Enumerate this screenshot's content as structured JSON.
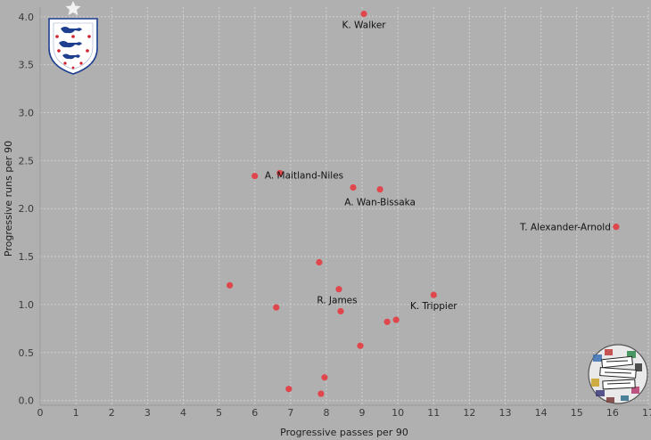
{
  "chart_data": {
    "type": "scatter",
    "title": "",
    "xlabel": "Progressive passes per 90",
    "ylabel": "Progressive runs per 90",
    "xlim": [
      0,
      17
    ],
    "ylim": [
      -0.05,
      4.1
    ],
    "xticks": [
      0,
      1,
      2,
      3,
      4,
      5,
      6,
      7,
      8,
      9,
      10,
      11,
      12,
      13,
      14,
      15,
      16,
      17
    ],
    "yticks": [
      0.0,
      0.5,
      1.0,
      1.5,
      2.0,
      2.5,
      3.0,
      3.5,
      4.0
    ],
    "ytick_labels": [
      "0.0",
      "0.5",
      "1.0",
      "1.5",
      "2.0",
      "2.5",
      "3.0",
      "3.5",
      "4.0"
    ],
    "grid": true,
    "point_color": "#e0474c",
    "points": [
      {
        "x": 9.05,
        "y": 4.03,
        "label": "K. Walker"
      },
      {
        "x": 6.0,
        "y": 2.34,
        "label": ""
      },
      {
        "x": 6.7,
        "y": 2.37,
        "label": ""
      },
      {
        "x": 8.75,
        "y": 2.22,
        "label": "A. Maitland-Niles"
      },
      {
        "x": 9.5,
        "y": 2.2,
        "label": "A. Wan-Bissaka"
      },
      {
        "x": 16.1,
        "y": 1.81,
        "label": "T. Alexander-Arnold"
      },
      {
        "x": 7.8,
        "y": 1.44,
        "label": ""
      },
      {
        "x": 5.3,
        "y": 1.2,
        "label": ""
      },
      {
        "x": 8.35,
        "y": 1.16,
        "label": ""
      },
      {
        "x": 11.0,
        "y": 1.1,
        "label": "K. Trippier"
      },
      {
        "x": 6.6,
        "y": 0.97,
        "label": ""
      },
      {
        "x": 8.4,
        "y": 0.93,
        "label": "R. James"
      },
      {
        "x": 9.7,
        "y": 0.82,
        "label": ""
      },
      {
        "x": 9.95,
        "y": 0.84,
        "label": ""
      },
      {
        "x": 8.95,
        "y": 0.57,
        "label": ""
      },
      {
        "x": 7.95,
        "y": 0.24,
        "label": ""
      },
      {
        "x": 6.95,
        "y": 0.12,
        "label": ""
      },
      {
        "x": 7.85,
        "y": 0.07,
        "label": ""
      }
    ]
  },
  "logos": {
    "england_crest_icon": "england-crest-icon",
    "total_football_analysis_logo": "total-football-analysis-logo"
  },
  "colors": {
    "background": "#b0b0b0",
    "grid": "#cfcfcf",
    "crest_blue": "#1e3f8f",
    "crest_red": "#d2202e"
  }
}
